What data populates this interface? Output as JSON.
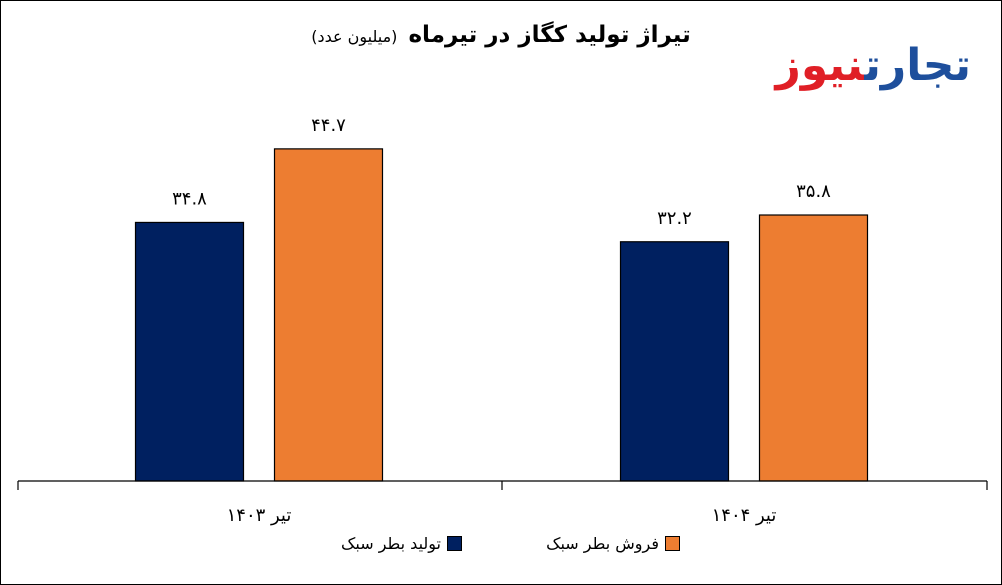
{
  "title": {
    "main": "تیراژ تولید کگاز در تیرماه",
    "sub": "(میلیون عدد)"
  },
  "logo": {
    "part1": "تجارت",
    "part2": "نیوز"
  },
  "chart_data": {
    "type": "bar",
    "categories": [
      "تیر ۱۴۰۳",
      "تیر ۱۴۰۴"
    ],
    "series": [
      {
        "name": "تولید بطر سبک",
        "values": [
          34.8,
          32.2
        ],
        "labels": [
          "۳۴.۸",
          "۳۲.۲"
        ],
        "color": "#002060"
      },
      {
        "name": "فروش بطر سبک",
        "values": [
          44.7,
          35.8
        ],
        "labels": [
          "۴۴.۷",
          "۳۵.۸"
        ],
        "color": "#ed7d31"
      }
    ],
    "ylim": [
      0,
      50
    ],
    "grid": false,
    "legend": "bottom",
    "title": "تیراژ تولید کگاز در تیرماه (میلیون عدد)",
    "xlabel": "",
    "ylabel": ""
  }
}
